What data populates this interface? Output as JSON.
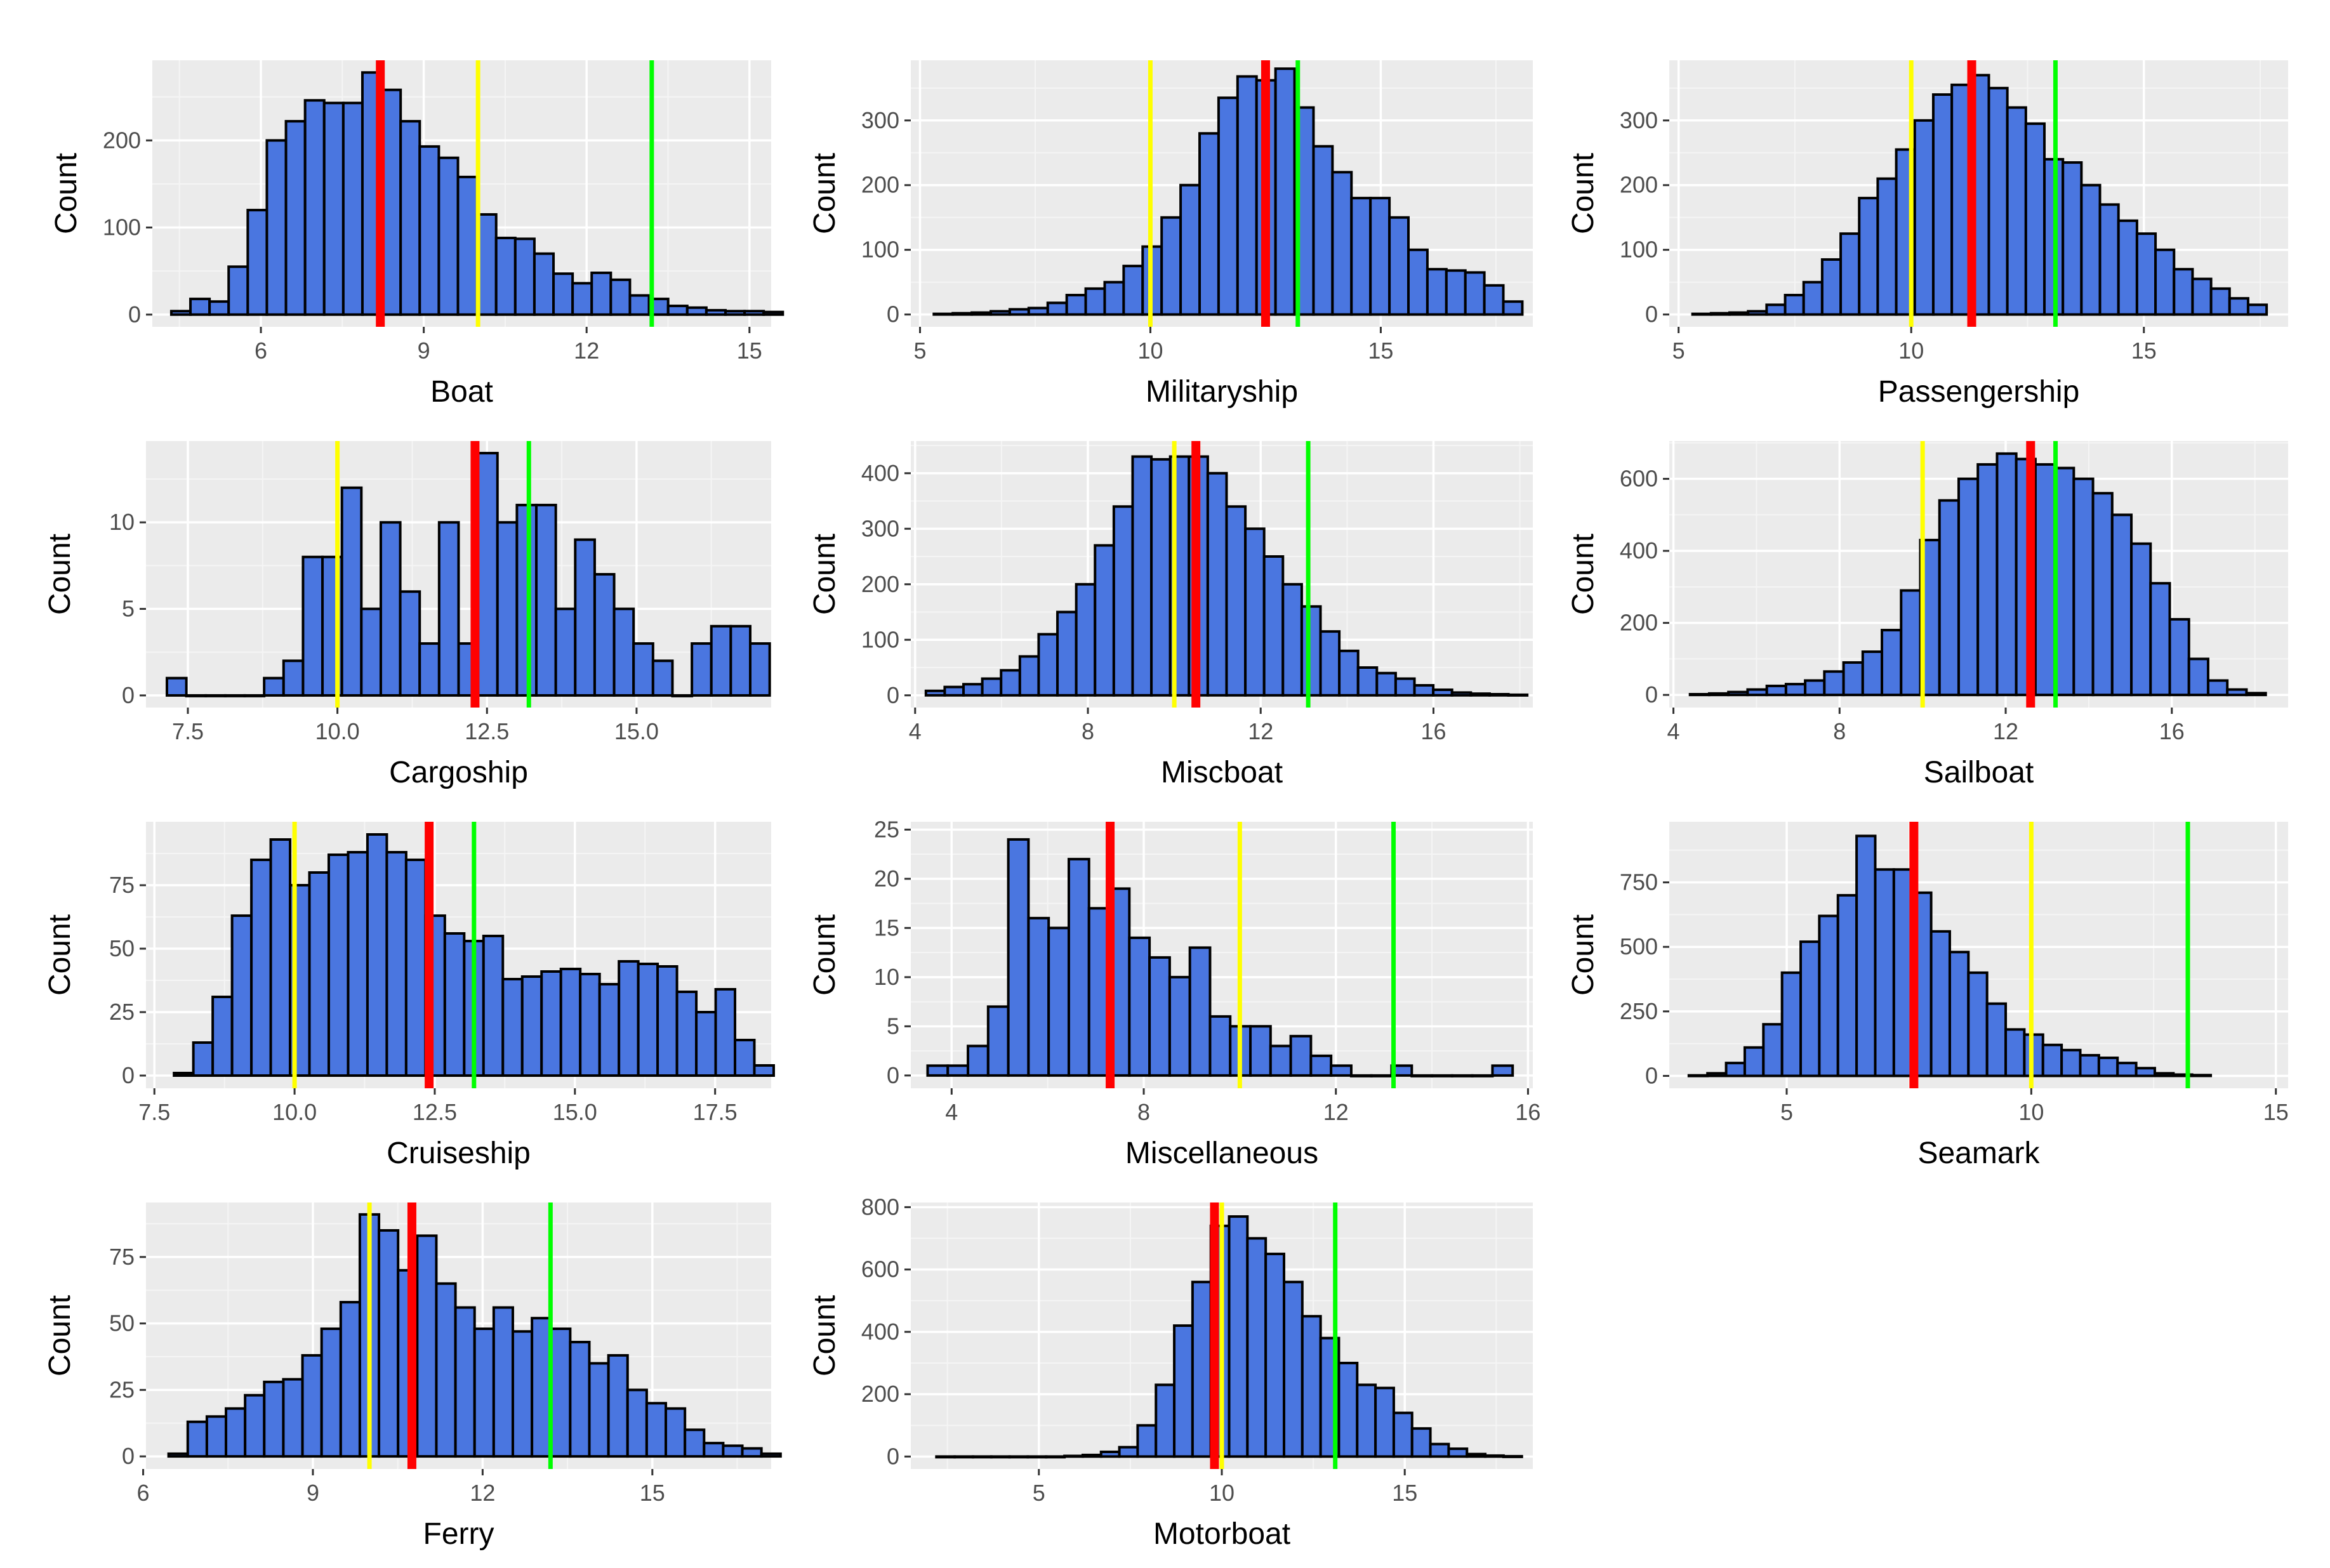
{
  "colors": {
    "panel_bg": "#ebebeb",
    "grid_major": "#ffffff",
    "grid_minor": "#f5f5f5",
    "bar_fill": "#4a76e0",
    "bar_stroke": "#000000",
    "red_line": "#ff0000",
    "yellow_line": "#ffff00",
    "green_line": "#00ff00"
  },
  "chart_data": [
    {
      "type": "bar",
      "xlabel": "Boat",
      "ylabel": "Count",
      "xlim": [
        4.0,
        15.4
      ],
      "ylim": [
        -14,
        292
      ],
      "xticks": [
        6,
        9,
        12,
        15
      ],
      "xtick_labels": [
        "6",
        "9",
        "12",
        "15"
      ],
      "yticks": [
        0,
        100,
        200
      ],
      "ytick_labels": [
        "0",
        "100",
        "200"
      ],
      "bins": {
        "start": 4.35,
        "width": 0.352
      },
      "values": [
        4,
        18,
        15,
        55,
        120,
        200,
        222,
        246,
        243,
        243,
        278,
        258,
        222,
        193,
        180,
        158,
        115,
        88,
        87,
        70,
        47,
        36,
        48,
        40,
        22,
        18,
        10,
        8,
        5,
        4,
        4,
        3
      ],
      "vlines": {
        "red": 8.2,
        "yellow": 10.0,
        "green": 13.2
      }
    },
    {
      "type": "bar",
      "xlabel": "Militaryship",
      "ylabel": "Count",
      "xlim": [
        4.8,
        18.3
      ],
      "ylim": [
        -19,
        393
      ],
      "xticks": [
        5,
        10,
        15
      ],
      "xtick_labels": [
        "5",
        "10",
        "15"
      ],
      "yticks": [
        0,
        100,
        200,
        300
      ],
      "ytick_labels": [
        "0",
        "100",
        "200",
        "300"
      ],
      "bins": {
        "start": 5.3,
        "width": 0.412
      },
      "values": [
        1,
        2,
        3,
        5,
        8,
        10,
        18,
        30,
        40,
        50,
        75,
        105,
        150,
        200,
        280,
        335,
        368,
        362,
        380,
        320,
        260,
        220,
        180,
        180,
        150,
        100,
        70,
        68,
        65,
        45,
        20
      ],
      "vlines": {
        "red": 12.5,
        "yellow": 10.0,
        "green": 13.2
      }
    },
    {
      "type": "bar",
      "xlabel": "Passengership",
      "ylabel": "Count",
      "xlim": [
        4.8,
        18.1
      ],
      "ylim": [
        -19,
        393
      ],
      "xticks": [
        5,
        10,
        15
      ],
      "xtick_labels": [
        "5",
        "10",
        "15"
      ],
      "yticks": [
        0,
        100,
        200,
        300
      ],
      "ytick_labels": [
        "0",
        "100",
        "200",
        "300"
      ],
      "bins": {
        "start": 5.3,
        "width": 0.398
      },
      "values": [
        1,
        2,
        3,
        5,
        15,
        30,
        50,
        85,
        125,
        180,
        210,
        255,
        300,
        340,
        355,
        370,
        350,
        320,
        295,
        240,
        235,
        200,
        170,
        145,
        125,
        100,
        70,
        55,
        40,
        25,
        15
      ],
      "vlines": {
        "red": 11.3,
        "yellow": 10.0,
        "green": 13.1
      }
    },
    {
      "type": "bar",
      "xlabel": "Cargoship",
      "ylabel": "Count",
      "xlim": [
        6.8,
        17.25
      ],
      "ylim": [
        -0.7,
        14.7
      ],
      "xticks": [
        7.5,
        10.0,
        12.5,
        15.0
      ],
      "xtick_labels": [
        "7.5",
        "10.0",
        "12.5",
        "15.0"
      ],
      "yticks": [
        0,
        5,
        10
      ],
      "ytick_labels": [
        "0",
        "5",
        "10"
      ],
      "bins": {
        "start": 7.15,
        "width": 0.325
      },
      "values": [
        1,
        0,
        0,
        0,
        0,
        1,
        2,
        8,
        8,
        12,
        5,
        10,
        6,
        3,
        10,
        3,
        14,
        10,
        11,
        11,
        5,
        9,
        7,
        5,
        3,
        2,
        0,
        3,
        4,
        4,
        3
      ],
      "vlines": {
        "red": 12.3,
        "yellow": 10.0,
        "green": 13.2
      }
    },
    {
      "type": "bar",
      "xlabel": "Miscboat",
      "ylabel": "Count",
      "xlim": [
        3.9,
        18.3
      ],
      "ylim": [
        -22,
        458
      ],
      "xticks": [
        4,
        8,
        12,
        16
      ],
      "xtick_labels": [
        "4",
        "8",
        "12",
        "16"
      ],
      "yticks": [
        0,
        100,
        200,
        300,
        400
      ],
      "ytick_labels": [
        "0",
        "100",
        "200",
        "300",
        "400"
      ],
      "bins": {
        "start": 4.25,
        "width": 0.435
      },
      "values": [
        8,
        15,
        20,
        30,
        45,
        70,
        110,
        150,
        200,
        270,
        340,
        430,
        425,
        430,
        430,
        400,
        340,
        300,
        250,
        200,
        160,
        115,
        80,
        50,
        40,
        30,
        18,
        10,
        5,
        3,
        2,
        1
      ],
      "vlines": {
        "red": 10.5,
        "yellow": 10.0,
        "green": 13.1
      }
    },
    {
      "type": "bar",
      "xlabel": "Sailboat",
      "ylabel": "Count",
      "xlim": [
        3.9,
        18.8
      ],
      "ylim": [
        -35,
        705
      ],
      "xticks": [
        4,
        8,
        12,
        16
      ],
      "xtick_labels": [
        "4",
        "8",
        "12",
        "16"
      ],
      "yticks": [
        0,
        200,
        400,
        600
      ],
      "ytick_labels": [
        "0",
        "200",
        "400",
        "600"
      ],
      "bins": {
        "start": 4.4,
        "width": 0.462
      },
      "values": [
        2,
        4,
        8,
        15,
        25,
        30,
        40,
        65,
        90,
        120,
        180,
        290,
        430,
        540,
        600,
        640,
        670,
        655,
        640,
        630,
        600,
        560,
        500,
        420,
        310,
        210,
        100,
        40,
        15,
        5
      ],
      "vlines": {
        "red": 12.6,
        "yellow": 10.0,
        "green": 13.2
      }
    },
    {
      "type": "bar",
      "xlabel": "Cruiseship",
      "ylabel": "Count",
      "xlim": [
        7.35,
        18.5
      ],
      "ylim": [
        -5,
        100
      ],
      "xticks": [
        7.5,
        10.0,
        12.5,
        15.0,
        17.5
      ],
      "xtick_labels": [
        "7.5",
        "10.0",
        "12.5",
        "15.0",
        "17.5"
      ],
      "yticks": [
        0,
        25,
        50,
        75
      ],
      "ytick_labels": [
        "0",
        "25",
        "50",
        "75"
      ],
      "bins": {
        "start": 7.85,
        "width": 0.345
      },
      "values": [
        1,
        13,
        31,
        63,
        85,
        93,
        75,
        80,
        87,
        88,
        95,
        88,
        85,
        63,
        56,
        53,
        55,
        38,
        39,
        41,
        42,
        40,
        36,
        45,
        44,
        43,
        33,
        25,
        34,
        14,
        4
      ],
      "vlines": {
        "red": 12.4,
        "yellow": 10.0,
        "green": 13.2
      }
    },
    {
      "type": "bar",
      "xlabel": "Miscellaneous",
      "ylabel": "Count",
      "xlim": [
        3.15,
        16.1
      ],
      "ylim": [
        -1.3,
        25.8
      ],
      "xticks": [
        4,
        8,
        12,
        16
      ],
      "xtick_labels": [
        "4",
        "8",
        "12",
        "16"
      ],
      "yticks": [
        0,
        5,
        10,
        15,
        20,
        25
      ],
      "ytick_labels": [
        "0",
        "5",
        "10",
        "15",
        "20",
        "25"
      ],
      "bins": {
        "start": 3.5,
        "width": 0.42
      },
      "values": [
        1,
        1,
        3,
        7,
        24,
        16,
        15,
        22,
        17,
        19,
        14,
        12,
        10,
        13,
        6,
        5,
        5,
        3,
        4,
        2,
        1,
        0,
        0,
        1,
        0,
        0,
        0,
        0,
        1
      ],
      "vlines": {
        "red": 7.3,
        "yellow": 10.0,
        "green": 13.2
      }
    },
    {
      "type": "bar",
      "xlabel": "Seamark",
      "ylabel": "Count",
      "xlim": [
        2.6,
        15.25
      ],
      "ylim": [
        -48,
        985
      ],
      "xticks": [
        5,
        10,
        15
      ],
      "xtick_labels": [
        "5",
        "10",
        "15"
      ],
      "yticks": [
        0,
        250,
        500,
        750
      ],
      "ytick_labels": [
        "0",
        "250",
        "500",
        "750"
      ],
      "bins": {
        "start": 3.0,
        "width": 0.381
      },
      "values": [
        2,
        10,
        50,
        110,
        200,
        400,
        520,
        620,
        700,
        930,
        800,
        800,
        710,
        560,
        480,
        400,
        280,
        180,
        160,
        120,
        100,
        80,
        70,
        50,
        30,
        10,
        5,
        3
      ],
      "vlines": {
        "red": 7.6,
        "yellow": 10.0,
        "green": 13.2
      }
    },
    {
      "type": "bar",
      "xlabel": "Ferry",
      "ylabel": "Count",
      "xlim": [
        6.05,
        17.1
      ],
      "ylim": [
        -4.75,
        95.5
      ],
      "xticks": [
        6,
        9,
        12,
        15
      ],
      "xtick_labels": [
        "6",
        "9",
        "12",
        "15"
      ],
      "yticks": [
        0,
        25,
        50,
        75
      ],
      "ytick_labels": [
        "0",
        "25",
        "50",
        "75"
      ],
      "bins": {
        "start": 6.45,
        "width": 0.338
      },
      "values": [
        1,
        13,
        15,
        18,
        23,
        28,
        29,
        38,
        48,
        58,
        91,
        85,
        70,
        83,
        65,
        56,
        48,
        56,
        47,
        52,
        48,
        43,
        35,
        38,
        25,
        20,
        18,
        10,
        5,
        4,
        3,
        1
      ],
      "vlines": {
        "red": 10.75,
        "yellow": 10.0,
        "green": 13.2
      }
    },
    {
      "type": "bar",
      "xlabel": "Motorboat",
      "ylabel": "Count",
      "xlim": [
        1.5,
        18.5
      ],
      "ylim": [
        -40,
        815
      ],
      "xticks": [
        5,
        10,
        15
      ],
      "xtick_labels": [
        "5",
        "10",
        "15"
      ],
      "yticks": [
        0,
        200,
        400,
        600,
        800
      ],
      "ytick_labels": [
        "0",
        "200",
        "400",
        "600",
        "800"
      ],
      "bins": {
        "start": 2.2,
        "width": 0.5
      },
      "values": [
        0,
        0,
        0,
        0,
        0,
        0,
        0,
        2,
        5,
        15,
        30,
        100,
        230,
        420,
        560,
        740,
        770,
        700,
        650,
        560,
        450,
        380,
        300,
        230,
        220,
        140,
        90,
        40,
        25,
        8,
        3,
        1
      ],
      "vlines": {
        "red": 9.8,
        "yellow": 10.0,
        "green": 13.1
      }
    }
  ]
}
